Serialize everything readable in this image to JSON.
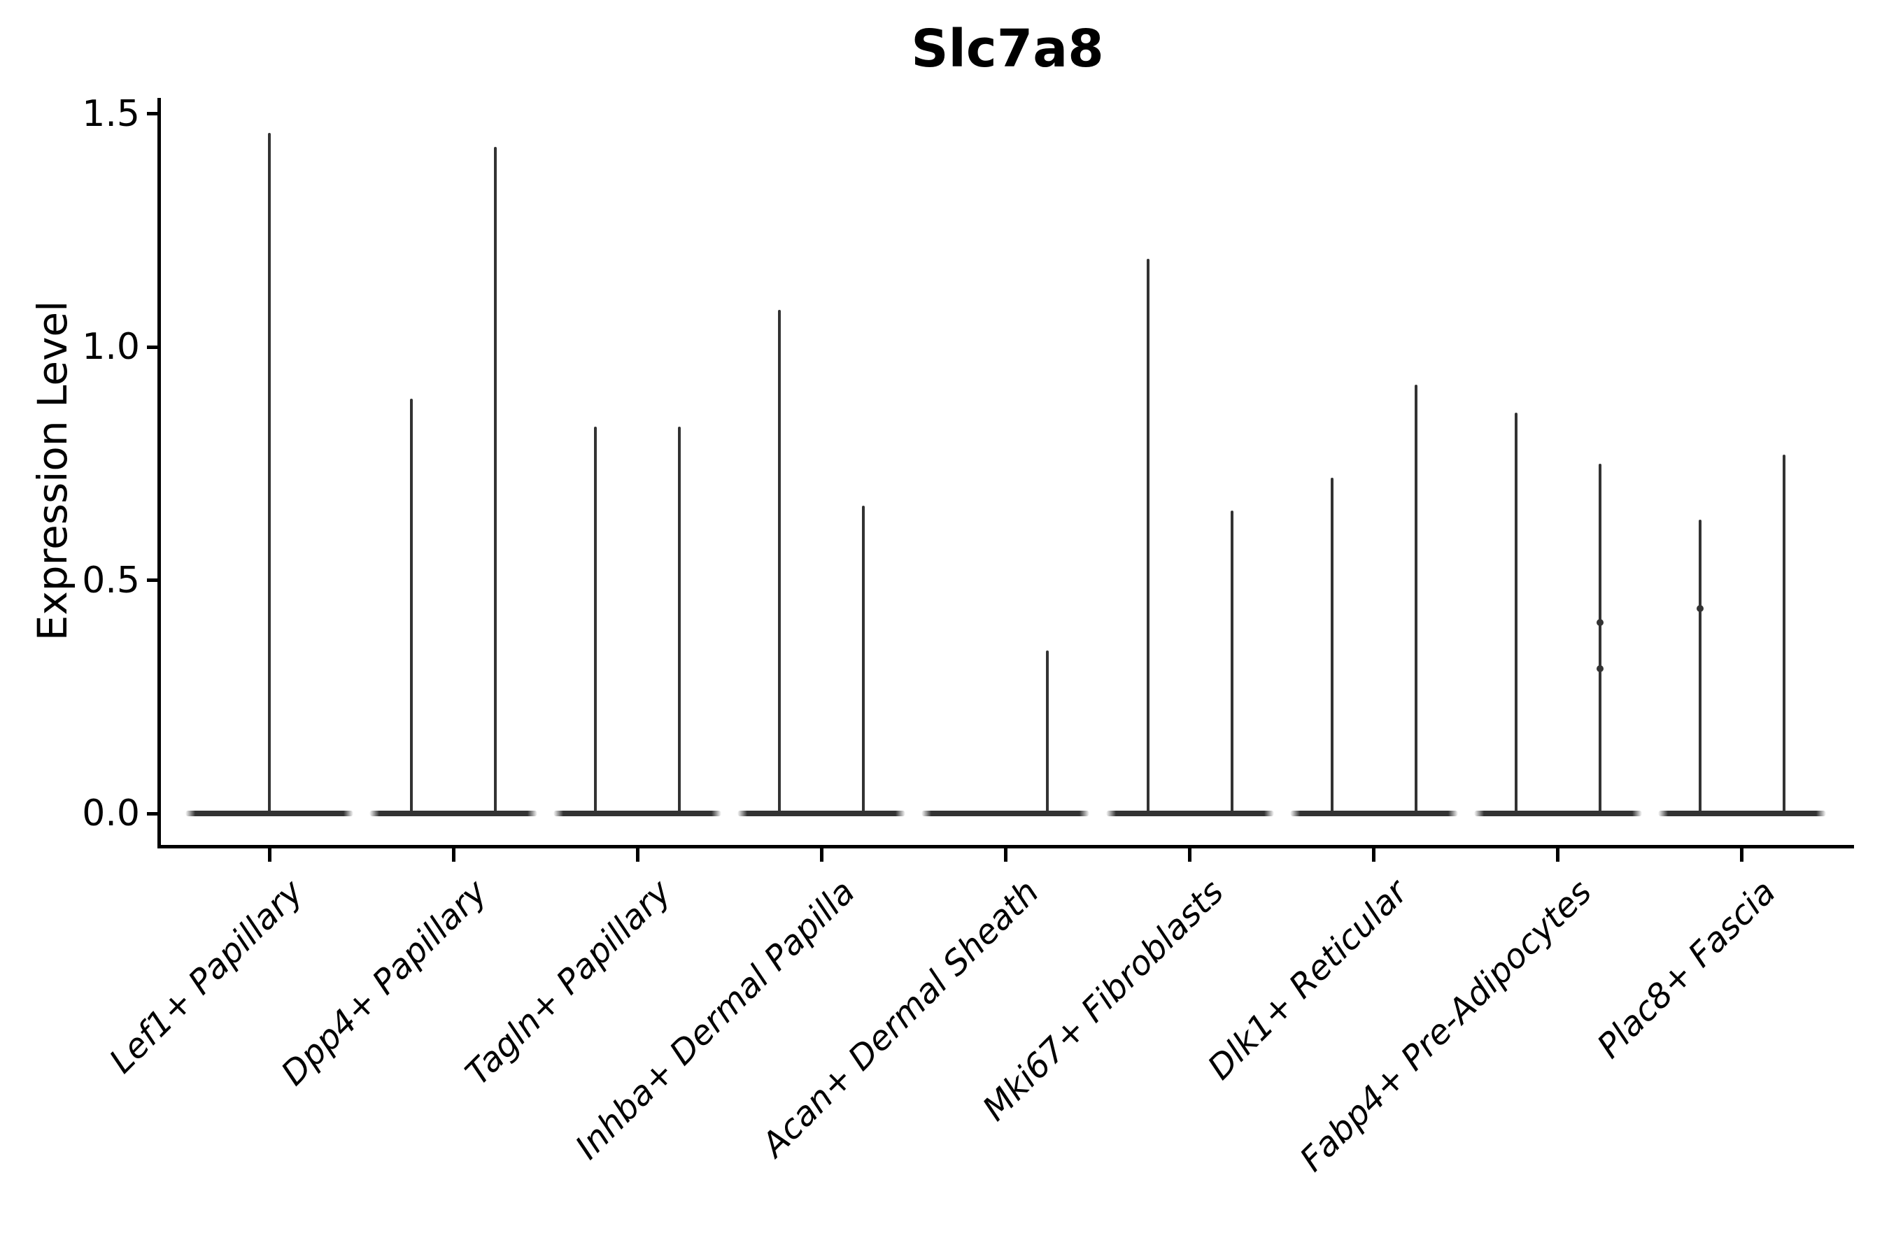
{
  "chart_data": {
    "type": "violin",
    "title": "Slc7a8",
    "xlabel": "",
    "ylabel": "Expression Level",
    "ylim": [
      0,
      1.5
    ],
    "yticks": [
      0.0,
      0.5,
      1.0,
      1.5
    ],
    "ytick_labels": [
      "0.0",
      "0.5",
      "1.0",
      "1.5"
    ],
    "grid": false,
    "legend": false,
    "style_note": "Degenerate violins: wide flat base at expression 0 with a thin vertical spike up to the max expression; two dodged violins per cell type unless noted",
    "categories": [
      "Lef1+ Papillary",
      "Dpp4+ Papillary",
      "Tagln+ Papillary",
      "Inhba+ Dermal Papilla",
      "Acan+ Dermal Sheath",
      "Mki67+ Fibroblasts",
      "Dlk1+ Reticular",
      "Fabp4+ Pre-Adipocytes",
      "Plac8+ Fascia"
    ],
    "violins": [
      {
        "category": "Lef1+ Papillary",
        "components": [
          {
            "position": "center",
            "max_expression": 1.46,
            "bumps": []
          }
        ]
      },
      {
        "category": "Dpp4+ Papillary",
        "components": [
          {
            "position": "left",
            "max_expression": 0.89,
            "bumps": []
          },
          {
            "position": "right",
            "max_expression": 1.43,
            "bumps": []
          }
        ]
      },
      {
        "category": "Tagln+ Papillary",
        "components": [
          {
            "position": "left",
            "max_expression": 0.83,
            "bumps": []
          },
          {
            "position": "right",
            "max_expression": 0.83,
            "bumps": []
          }
        ]
      },
      {
        "category": "Inhba+ Dermal Papilla",
        "components": [
          {
            "position": "left",
            "max_expression": 1.08,
            "bumps": []
          },
          {
            "position": "right",
            "max_expression": 0.66,
            "bumps": []
          }
        ]
      },
      {
        "category": "Acan+ Dermal Sheath",
        "components": [
          {
            "position": "left",
            "max_expression": 0.0,
            "bumps": []
          },
          {
            "position": "right",
            "max_expression": 0.35,
            "bumps": []
          }
        ]
      },
      {
        "category": "Mki67+ Fibroblasts",
        "components": [
          {
            "position": "left",
            "max_expression": 1.19,
            "bumps": []
          },
          {
            "position": "right",
            "max_expression": 0.65,
            "bumps": []
          }
        ]
      },
      {
        "category": "Dlk1+ Reticular",
        "components": [
          {
            "position": "left",
            "max_expression": 0.72,
            "bumps": []
          },
          {
            "position": "right",
            "max_expression": 0.92,
            "bumps": []
          }
        ]
      },
      {
        "category": "Fabp4+ Pre-Adipocytes",
        "components": [
          {
            "position": "left",
            "max_expression": 0.86,
            "bumps": []
          },
          {
            "position": "right",
            "max_expression": 0.75,
            "bumps": [
              0.41,
              0.31
            ]
          }
        ]
      },
      {
        "category": "Plac8+ Fascia",
        "components": [
          {
            "position": "left",
            "max_expression": 0.63,
            "bumps": [
              0.44
            ]
          },
          {
            "position": "right",
            "max_expression": 0.77,
            "bumps": []
          }
        ]
      }
    ],
    "colors": {
      "violin": "#333333",
      "axis": "#000000",
      "text": "#000000",
      "background": "#ffffff"
    }
  }
}
